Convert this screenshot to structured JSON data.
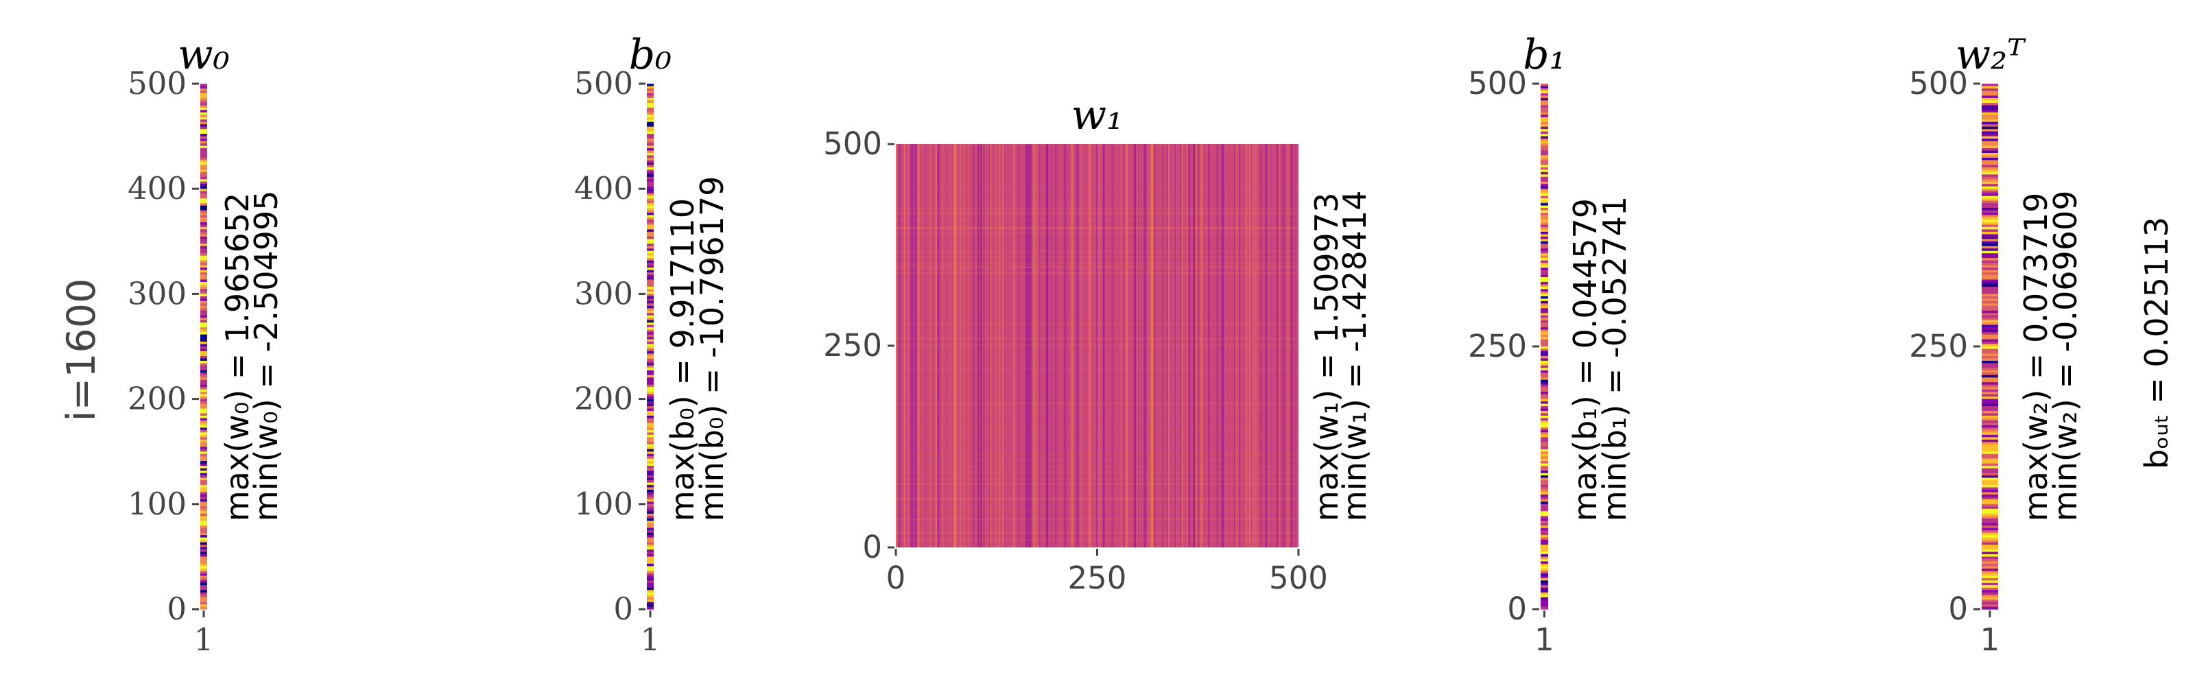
{
  "chart_data": [
    {
      "type": "heatmap",
      "title": "w₀",
      "tick_font": "serif",
      "xlim": [
        0.5,
        1.5
      ],
      "xticks": [
        1
      ],
      "ylim": [
        0,
        500
      ],
      "yticks": [
        0,
        100,
        200,
        300,
        400,
        500
      ],
      "annotations": [
        "max(w₀) = 1.965652",
        "min(w₀) = -2.504995"
      ],
      "ylabel": "i=1600"
    },
    {
      "type": "heatmap",
      "title": "b₀",
      "tick_font": "serif",
      "xlim": [
        0.5,
        1.5
      ],
      "xticks": [
        1
      ],
      "ylim": [
        0,
        500
      ],
      "yticks": [
        0,
        100,
        200,
        300,
        400,
        500
      ],
      "annotations": [
        "max(b₀) = 9.917110",
        "min(b₀) = -10.796179"
      ]
    },
    {
      "type": "heatmap",
      "title": "w₁",
      "tick_font": "sans",
      "xlim": [
        0,
        500
      ],
      "xticks": [
        0,
        250,
        500
      ],
      "ylim": [
        0,
        500
      ],
      "yticks": [
        0,
        250,
        500
      ],
      "annotations": [
        "max(w₁) = 1.509973",
        "min(w₁) = -1.428414"
      ]
    },
    {
      "type": "heatmap",
      "title": "b₁",
      "tick_font": "sans",
      "xlim": [
        0.5,
        1.5
      ],
      "xticks": [
        1
      ],
      "ylim": [
        0,
        500
      ],
      "yticks": [
        0,
        250,
        500
      ],
      "annotations": [
        "max(b₁) = 0.044579",
        "min(b₁) = -0.052741"
      ]
    },
    {
      "type": "heatmap",
      "title": "w₂ᵀ",
      "tick_font": "sans",
      "xlim": [
        0.5,
        1.5
      ],
      "xticks": [
        1
      ],
      "ylim": [
        0,
        500
      ],
      "yticks": [
        0,
        250,
        500
      ],
      "annotations": [
        "max(w₂) = 0.073719",
        "min(w₂) = -0.069609"
      ],
      "side_note": "bₒᵤₜ = 0.025113"
    }
  ]
}
